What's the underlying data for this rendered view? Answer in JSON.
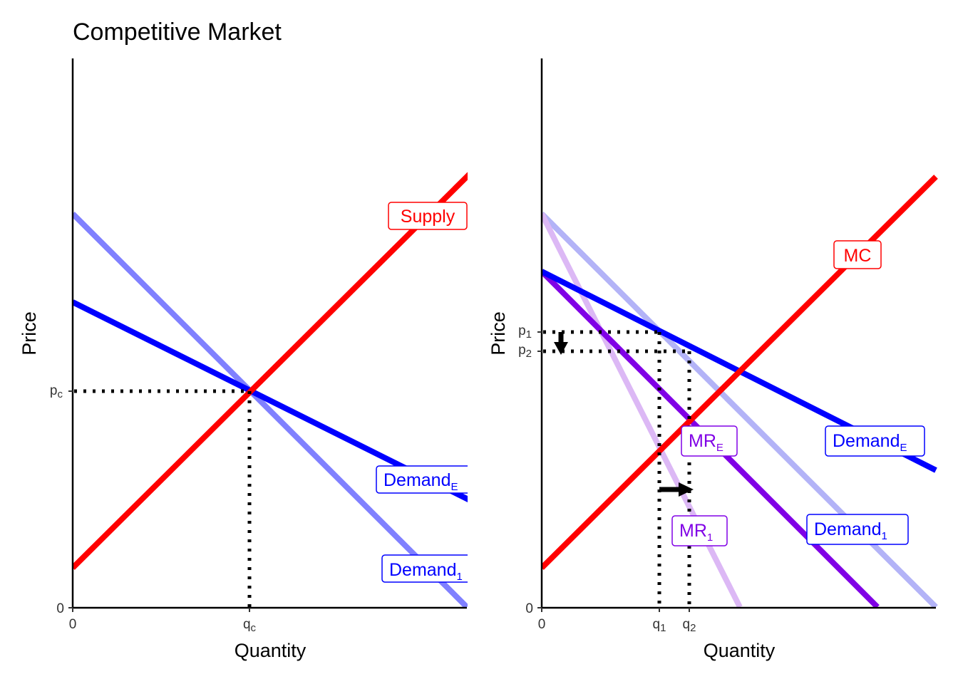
{
  "panels": [
    {
      "title": "Competitive Market",
      "y_axis_label": "Price",
      "x_axis_label": "Quantity",
      "y_ticks": [
        {
          "text": "0"
        },
        {
          "text": "p",
          "sub": "c"
        }
      ],
      "x_ticks": [
        {
          "text": "0"
        },
        {
          "text": "q",
          "sub": "c"
        }
      ],
      "curve_labels": [
        {
          "text": "Supply"
        },
        {
          "text": "Demand",
          "sub": "E"
        },
        {
          "text": "Demand",
          "sub": "1"
        }
      ]
    },
    {
      "y_axis_label": "Price",
      "x_axis_label": "Quantity",
      "y_ticks": [
        {
          "text": "0"
        },
        {
          "text": "p",
          "sub": "1"
        },
        {
          "text": "p",
          "sub": "2"
        }
      ],
      "x_ticks": [
        {
          "text": "0"
        },
        {
          "text": "q",
          "sub": "1"
        },
        {
          "text": "q",
          "sub": "2"
        }
      ],
      "curve_labels": [
        {
          "text": "MC"
        },
        {
          "text": "Demand",
          "sub": "E"
        },
        {
          "text": "MR",
          "sub": "E"
        },
        {
          "text": "MR",
          "sub": "1"
        },
        {
          "text": "Demand",
          "sub": "1"
        }
      ]
    }
  ]
}
